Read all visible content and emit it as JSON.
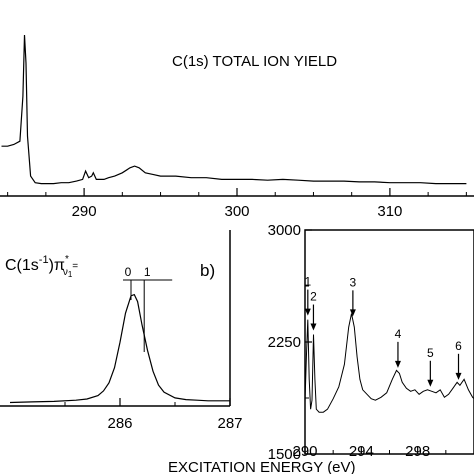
{
  "chart_data": [
    {
      "type": "line",
      "panel": "a",
      "title": "C(1s) TOTAL ION YIELD",
      "xlabel": "",
      "ylabel": "",
      "xlim": [
        284.5,
        315.5
      ],
      "ylim": [
        0,
        1
      ],
      "x_ticks": [
        290,
        300,
        310
      ],
      "y_ticks": [],
      "series": [
        {
          "x": [
            284.6,
            285.0,
            285.4,
            285.8,
            286.0,
            286.1,
            286.2,
            286.3,
            286.5,
            286.8,
            287.2,
            287.6,
            288.0,
            288.5,
            289.0,
            289.5,
            289.9,
            290.1,
            290.3,
            290.5,
            290.6,
            290.8,
            291.0,
            291.3,
            291.6,
            292.0,
            292.5,
            293.0,
            293.3,
            293.6,
            294.0,
            294.5,
            295.0,
            296.0,
            297.0,
            298.0,
            299.0,
            300.0,
            301.0,
            302.0,
            303.0,
            304.0,
            305.0,
            306.0,
            307.0,
            308.0,
            309.0,
            310.0,
            311.0,
            312.0,
            313.0,
            314.0,
            315.0
          ],
          "y": [
            0.3,
            0.3,
            0.31,
            0.33,
            0.6,
            0.97,
            0.8,
            0.36,
            0.12,
            0.08,
            0.075,
            0.075,
            0.075,
            0.08,
            0.08,
            0.09,
            0.1,
            0.15,
            0.11,
            0.12,
            0.14,
            0.1,
            0.1,
            0.1,
            0.11,
            0.12,
            0.14,
            0.17,
            0.18,
            0.17,
            0.14,
            0.13,
            0.12,
            0.12,
            0.11,
            0.11,
            0.1,
            0.1,
            0.1,
            0.095,
            0.1,
            0.095,
            0.09,
            0.09,
            0.09,
            0.085,
            0.085,
            0.08,
            0.08,
            0.08,
            0.075,
            0.075,
            0.075
          ]
        }
      ]
    },
    {
      "type": "line",
      "panel": "b",
      "label": "b)",
      "annotation": "C(1s-1)π*ν1=",
      "vib_labels": [
        "0",
        "1"
      ],
      "xlabel": "",
      "ylabel": "",
      "xlim": [
        285,
        287
      ],
      "ylim": [
        0,
        1
      ],
      "x_ticks": [
        286,
        287
      ],
      "y_ticks": [],
      "series": [
        {
          "x": [
            285.0,
            285.2,
            285.4,
            285.6,
            285.7,
            285.8,
            285.85,
            285.9,
            285.95,
            286.0,
            286.05,
            286.1,
            286.13,
            286.16,
            286.2,
            286.25,
            286.3,
            286.35,
            286.4,
            286.5,
            286.6,
            286.7,
            286.8,
            286.9,
            287.0
          ],
          "y": [
            0.03,
            0.035,
            0.04,
            0.05,
            0.06,
            0.09,
            0.13,
            0.2,
            0.33,
            0.55,
            0.8,
            0.95,
            0.96,
            0.9,
            0.7,
            0.48,
            0.3,
            0.18,
            0.12,
            0.07,
            0.055,
            0.05,
            0.045,
            0.045,
            0.045
          ]
        }
      ]
    },
    {
      "type": "line",
      "panel": "c",
      "xlabel": "EXCITATION ENERGY (eV)",
      "ylabel": "",
      "xlim": [
        290,
        302
      ],
      "ylim": [
        1500,
        3000
      ],
      "x_ticks": [
        290,
        294,
        298
      ],
      "y_ticks": [
        1500,
        2250,
        3000
      ],
      "peak_labels": [
        {
          "label": "1",
          "x": 290.2
        },
        {
          "label": "2",
          "x": 290.6
        },
        {
          "label": "3",
          "x": 293.4
        },
        {
          "label": "4",
          "x": 296.6
        },
        {
          "label": "5",
          "x": 298.9
        },
        {
          "label": "6",
          "x": 300.9
        }
      ],
      "series": [
        {
          "x": [
            290.0,
            290.1,
            290.2,
            290.3,
            290.4,
            290.5,
            290.6,
            290.7,
            290.8,
            291.0,
            291.3,
            291.6,
            292.0,
            292.4,
            292.8,
            293.1,
            293.3,
            293.5,
            293.7,
            293.9,
            294.1,
            294.4,
            294.7,
            295.0,
            295.4,
            295.8,
            296.2,
            296.5,
            296.7,
            296.9,
            297.2,
            297.5,
            297.8,
            298.1,
            298.4,
            298.7,
            299.0,
            299.3,
            299.6,
            299.9,
            300.2,
            300.5,
            300.8,
            301.0,
            301.3,
            301.6,
            301.9,
            302.0
          ],
          "y": [
            1850,
            2150,
            2400,
            2000,
            1800,
            1860,
            2300,
            2000,
            1800,
            1780,
            1780,
            1800,
            1870,
            1950,
            2100,
            2350,
            2440,
            2350,
            2150,
            2000,
            1930,
            1900,
            1870,
            1860,
            1880,
            1910,
            2000,
            2060,
            2040,
            1980,
            1940,
            1920,
            1930,
            1900,
            1920,
            1930,
            1920,
            1910,
            1930,
            1880,
            1900,
            1940,
            1980,
            1960,
            2000,
            1930,
            1880,
            1870
          ]
        }
      ]
    }
  ]
}
